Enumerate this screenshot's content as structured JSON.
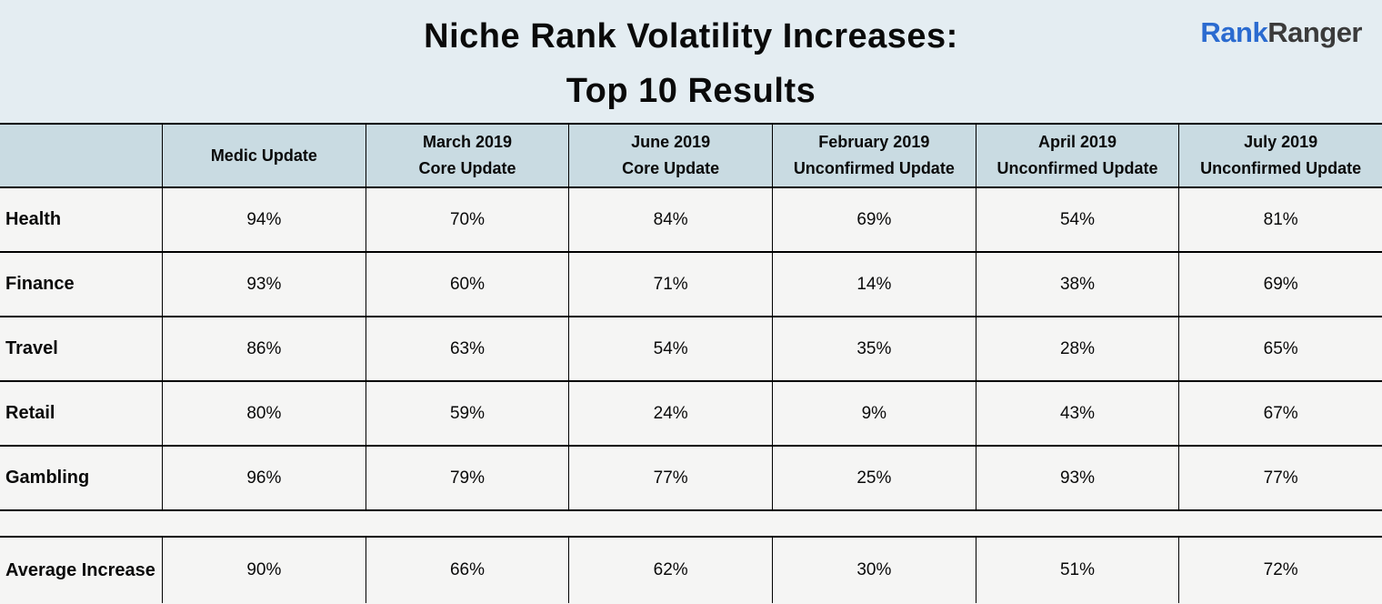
{
  "header": {
    "title_line1": "Niche Rank Volatility Increases:",
    "title_line2": "Top 10 Results",
    "logo_part1": "Rank",
    "logo_part2": "Ranger"
  },
  "colors": {
    "title_band_bg": "#e4edf2",
    "header_row_bg": "#c9dbe2",
    "data_row_bg": "#f5f5f4",
    "border": "#000000",
    "logo_blue": "#2b6bd0",
    "logo_gray": "#3b3b3b"
  },
  "table": {
    "corner_label": "",
    "columns": [
      {
        "line1": "Medic Update",
        "line2": ""
      },
      {
        "line1": "March 2019",
        "line2": "Core Update"
      },
      {
        "line1": "June 2019",
        "line2": "Core Update"
      },
      {
        "line1": "February 2019",
        "line2": "Unconfirmed Update"
      },
      {
        "line1": "April 2019",
        "line2": "Unconfirmed Update"
      },
      {
        "line1": "July 2019",
        "line2": "Unconfirmed Update"
      }
    ],
    "rows": [
      {
        "label": "Health",
        "values": [
          "94%",
          "70%",
          "84%",
          "69%",
          "54%",
          "81%"
        ]
      },
      {
        "label": "Finance",
        "values": [
          "93%",
          "60%",
          "71%",
          "14%",
          "38%",
          "69%"
        ]
      },
      {
        "label": "Travel",
        "values": [
          "86%",
          "63%",
          "54%",
          "35%",
          "28%",
          "65%"
        ]
      },
      {
        "label": "Retail",
        "values": [
          "80%",
          "59%",
          "24%",
          "9%",
          "43%",
          "67%"
        ]
      },
      {
        "label": "Gambling",
        "values": [
          "96%",
          "79%",
          "77%",
          "25%",
          "93%",
          "77%"
        ]
      }
    ],
    "summary_row": {
      "label": "Average Increase",
      "values": [
        "90%",
        "66%",
        "62%",
        "30%",
        "51%",
        "72%"
      ]
    }
  },
  "chart_data": {
    "type": "table",
    "title": "Niche Rank Volatility Increases: Top 10 Results",
    "unit": "%",
    "categories": [
      "Medic Update",
      "March 2019 Core Update",
      "June 2019 Core Update",
      "February 2019 Unconfirmed Update",
      "April 2019 Unconfirmed Update",
      "July 2019 Unconfirmed Update"
    ],
    "series": [
      {
        "name": "Health",
        "values": [
          94,
          70,
          84,
          69,
          54,
          81
        ]
      },
      {
        "name": "Finance",
        "values": [
          93,
          60,
          71,
          14,
          38,
          69
        ]
      },
      {
        "name": "Travel",
        "values": [
          86,
          63,
          54,
          35,
          28,
          65
        ]
      },
      {
        "name": "Retail",
        "values": [
          80,
          59,
          24,
          9,
          43,
          67
        ]
      },
      {
        "name": "Gambling",
        "values": [
          96,
          79,
          77,
          25,
          93,
          77
        ]
      },
      {
        "name": "Average Increase",
        "values": [
          90,
          66,
          62,
          30,
          51,
          72
        ]
      }
    ]
  }
}
